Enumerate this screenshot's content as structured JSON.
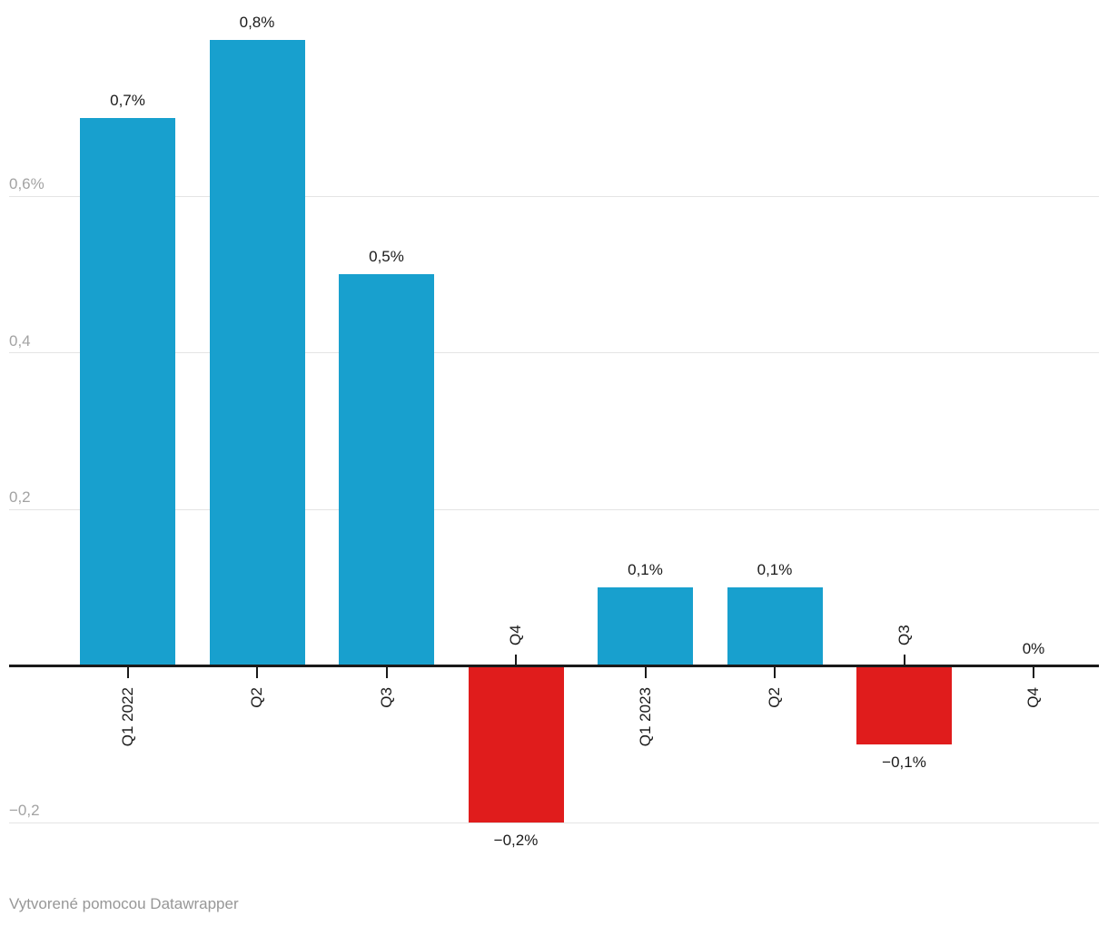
{
  "chart_data": {
    "type": "bar",
    "categories": [
      "Q1 2022",
      "Q2",
      "Q3",
      "Q4",
      "Q1 2023",
      "Q2",
      "Q3",
      "Q4"
    ],
    "values": [
      0.7,
      0.8,
      0.5,
      -0.2,
      0.1,
      0.1,
      -0.1,
      0
    ],
    "value_labels": [
      "0,7%",
      "0,8%",
      "0,5%",
      "−0,2%",
      "0,1%",
      "0,1%",
      "−0,1%",
      "0%"
    ],
    "y_ticks": [
      {
        "value": 0.6,
        "label": "0,6%"
      },
      {
        "value": 0.4,
        "label": "0,4"
      },
      {
        "value": 0.2,
        "label": "0,2"
      },
      {
        "value": -0.2,
        "label": "−0,2"
      }
    ],
    "title": "",
    "xlabel": "",
    "ylabel": "",
    "ylim": [
      -0.3,
      0.85
    ],
    "grid": true,
    "legend": "none",
    "colors": {
      "positive": "#18a0ce",
      "negative": "#e01c1c"
    }
  },
  "footer": {
    "attribution": "Vytvorené pomocou Datawrapper"
  }
}
